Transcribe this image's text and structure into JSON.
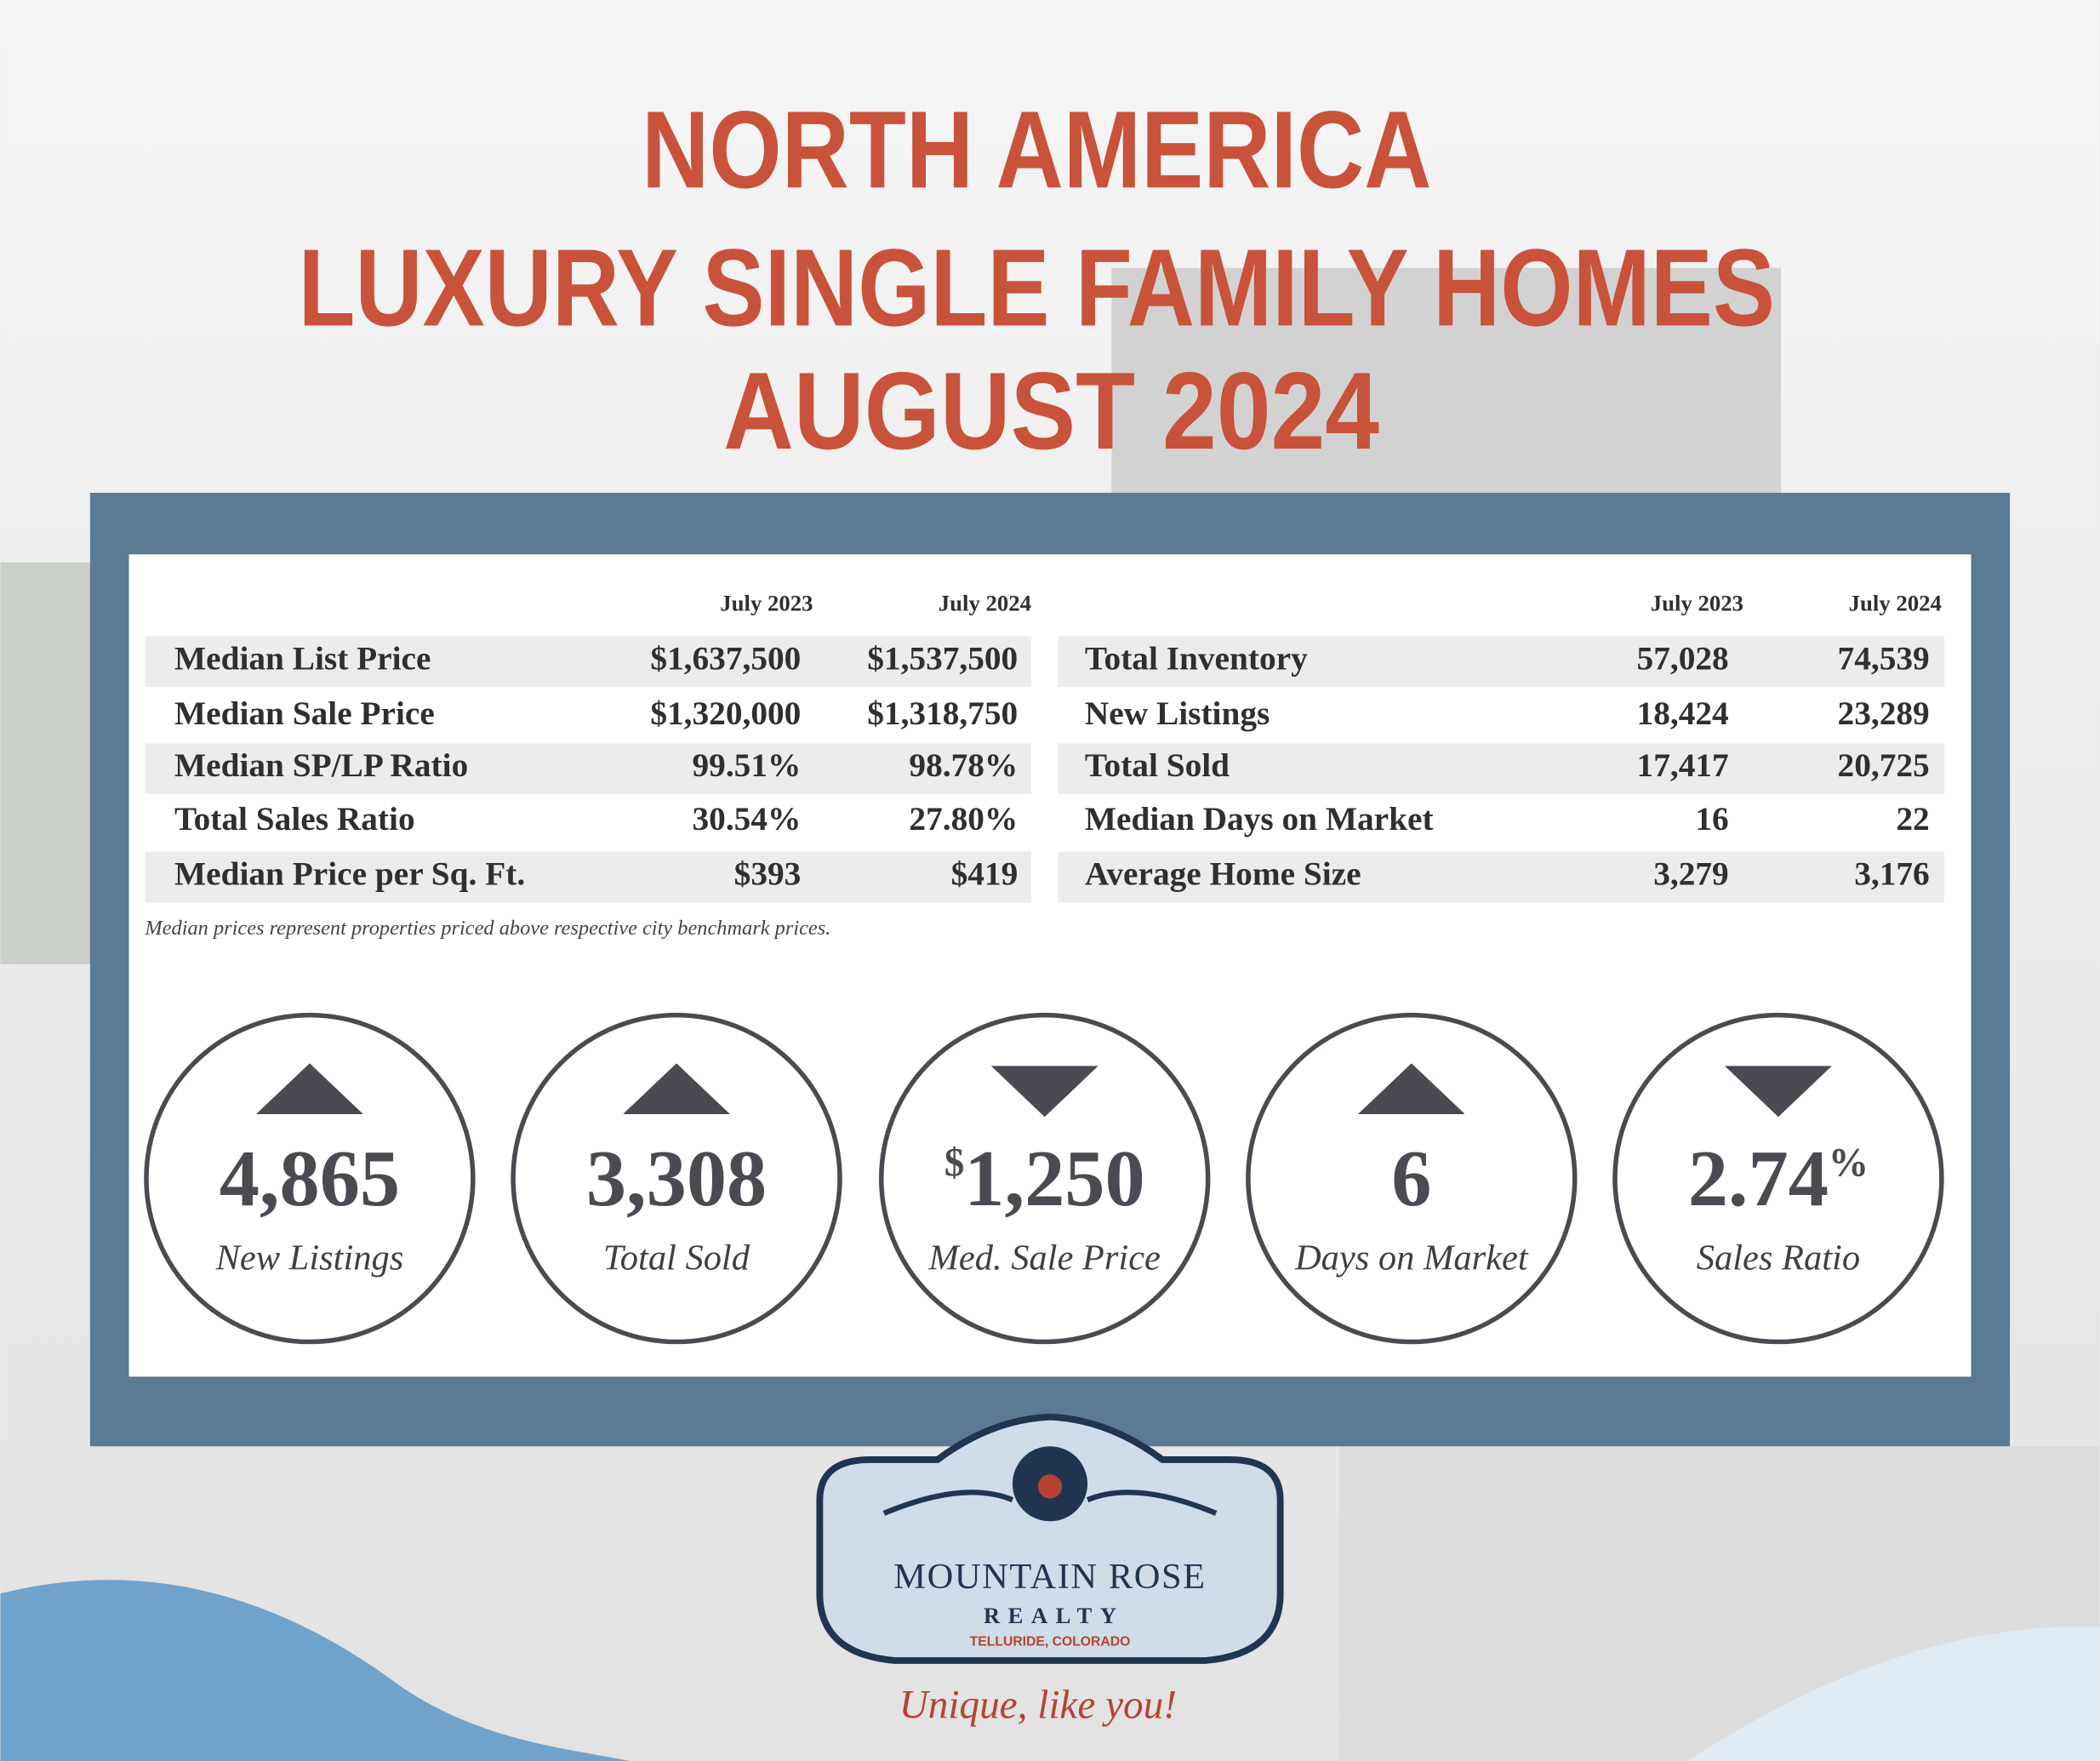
{
  "header": {
    "title_lines": [
      "NORTH AMERICA",
      "LUXURY SINGLE FAMILY HOMES",
      "AUGUST 2024"
    ]
  },
  "tables": [
    {
      "columns": [
        "July 2023",
        "July 2024"
      ],
      "rows": [
        [
          "Median List Price",
          "$1,637,500",
          "$1,537,500"
        ],
        [
          "Median Sale Price",
          "$1,320,000",
          "$1,318,750"
        ],
        [
          "Median SP/LP Ratio",
          "99.51%",
          "98.78%"
        ],
        [
          "Total Sales Ratio",
          "30.54%",
          "27.80%"
        ],
        [
          "Median Price per Sq. Ft.",
          "$393",
          "$419"
        ]
      ]
    },
    {
      "columns": [
        "July 2023",
        "July 2024"
      ],
      "rows": [
        [
          "Total Inventory",
          "57,028",
          "74,539"
        ],
        [
          "New Listings",
          "18,424",
          "23,289"
        ],
        [
          "Total Sold",
          "17,417",
          "20,725"
        ],
        [
          "Median Days on Market",
          "16",
          "22"
        ],
        [
          "Average Home Size",
          "3,279",
          "3,176"
        ]
      ]
    }
  ],
  "footnote": "Median prices represent properties priced above respective city benchmark prices.",
  "stats": [
    {
      "value": "4,865",
      "label": "New Listings",
      "direction": "up"
    },
    {
      "value": "3,308",
      "label": "Total Sold",
      "direction": "up"
    },
    {
      "prefix": "$",
      "value": "1,250",
      "label": "Med. Sale Price",
      "direction": "down"
    },
    {
      "value": "6",
      "label": "Days on Market",
      "direction": "up"
    },
    {
      "value": "2.74",
      "suffix": "%",
      "label": "Sales Ratio",
      "direction": "down"
    }
  ],
  "logo": {
    "name": "MOUNTAIN ROSE",
    "sub": "REALTY",
    "location": "TELLURIDE, COLORADO",
    "tagline": "Unique, like you!"
  }
}
